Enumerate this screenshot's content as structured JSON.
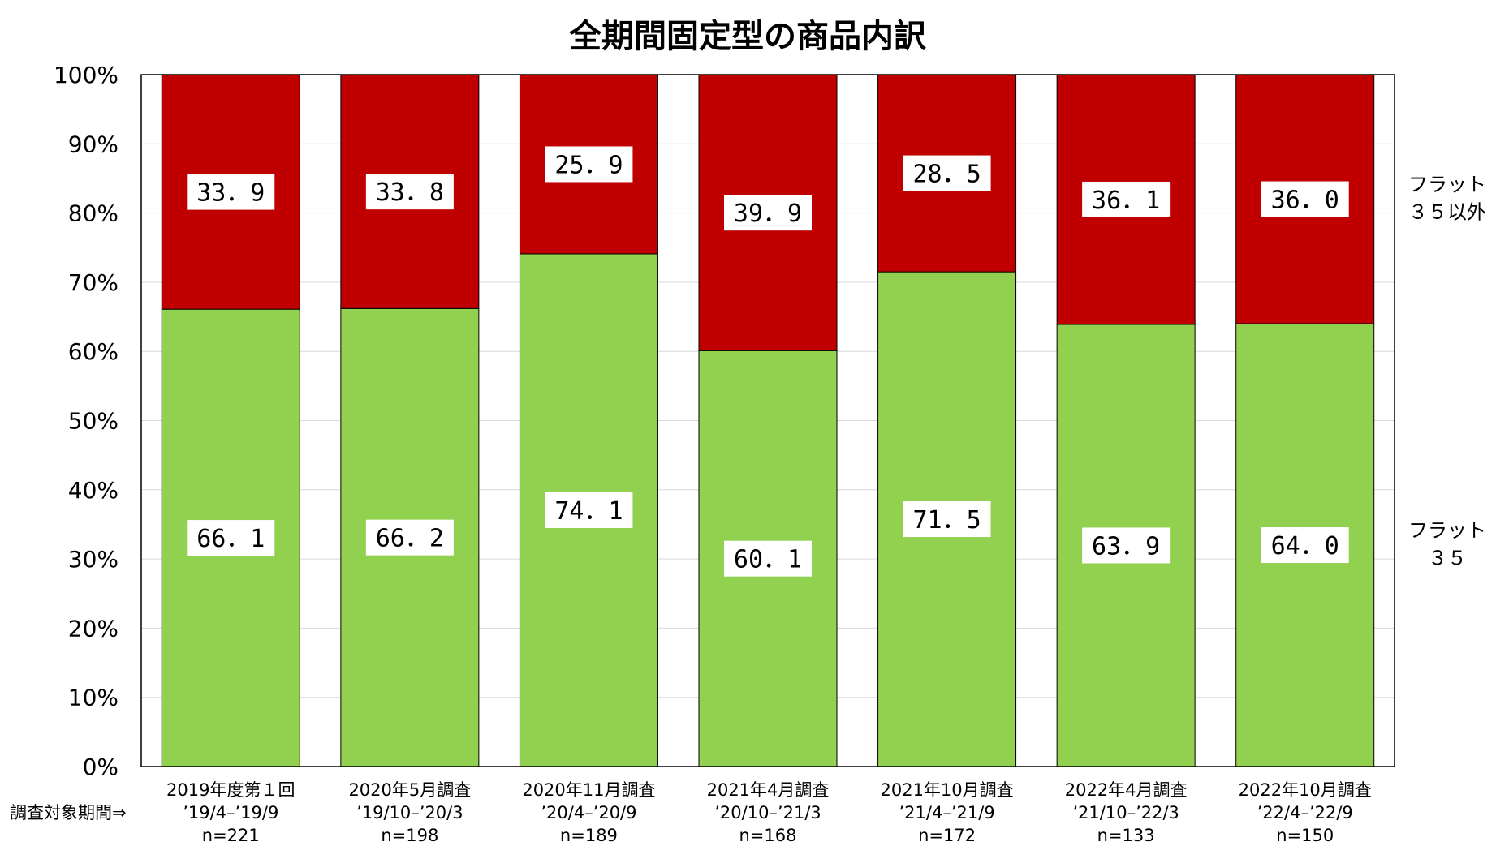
{
  "chart_data": {
    "type": "bar",
    "stacked": true,
    "title": "全期間固定型の商品内訳",
    "ylim": [
      0,
      100
    ],
    "yticks": [
      "0%",
      "10%",
      "20%",
      "30%",
      "40%",
      "50%",
      "60%",
      "70%",
      "80%",
      "90%",
      "100%"
    ],
    "categories": [
      [
        "2019年度第１回",
        "’19/4–’19/9",
        "n=221"
      ],
      [
        "2020年5月調査",
        "’19/10–’20/3",
        "n=198"
      ],
      [
        "2020年11月調査",
        "’20/4–’20/9",
        "n=189"
      ],
      [
        "2021年4月調査",
        "’20/10–’21/3",
        "n=168"
      ],
      [
        "2021年10月調査",
        "’21/4–’21/9",
        "n=172"
      ],
      [
        "2022年4月調査",
        "’21/10–’22/3",
        "n=133"
      ],
      [
        "2022年10月調査",
        "’22/4–’22/9",
        "n=150"
      ]
    ],
    "row_label": "調査対象期間⇒",
    "series": [
      {
        "name": "フラット３５",
        "legend_lines": [
          "フラット",
          "３５"
        ],
        "color": "#92D050",
        "values": [
          66.1,
          66.2,
          74.1,
          60.1,
          71.5,
          63.9,
          64.0
        ],
        "labels": [
          "66．1",
          "66．2",
          "74．1",
          "60．1",
          "71．5",
          "63．9",
          "64．0"
        ]
      },
      {
        "name": "フラット３５以外",
        "legend_lines": [
          "フラット",
          "３５以外"
        ],
        "color": "#C00000",
        "values": [
          33.9,
          33.8,
          25.9,
          39.9,
          28.5,
          36.1,
          36.0
        ],
        "labels": [
          "33．9",
          "33．8",
          "25．9",
          "39．9",
          "28．5",
          "36．1",
          "36．0"
        ]
      }
    ],
    "grid": true,
    "legend_position": "right"
  }
}
